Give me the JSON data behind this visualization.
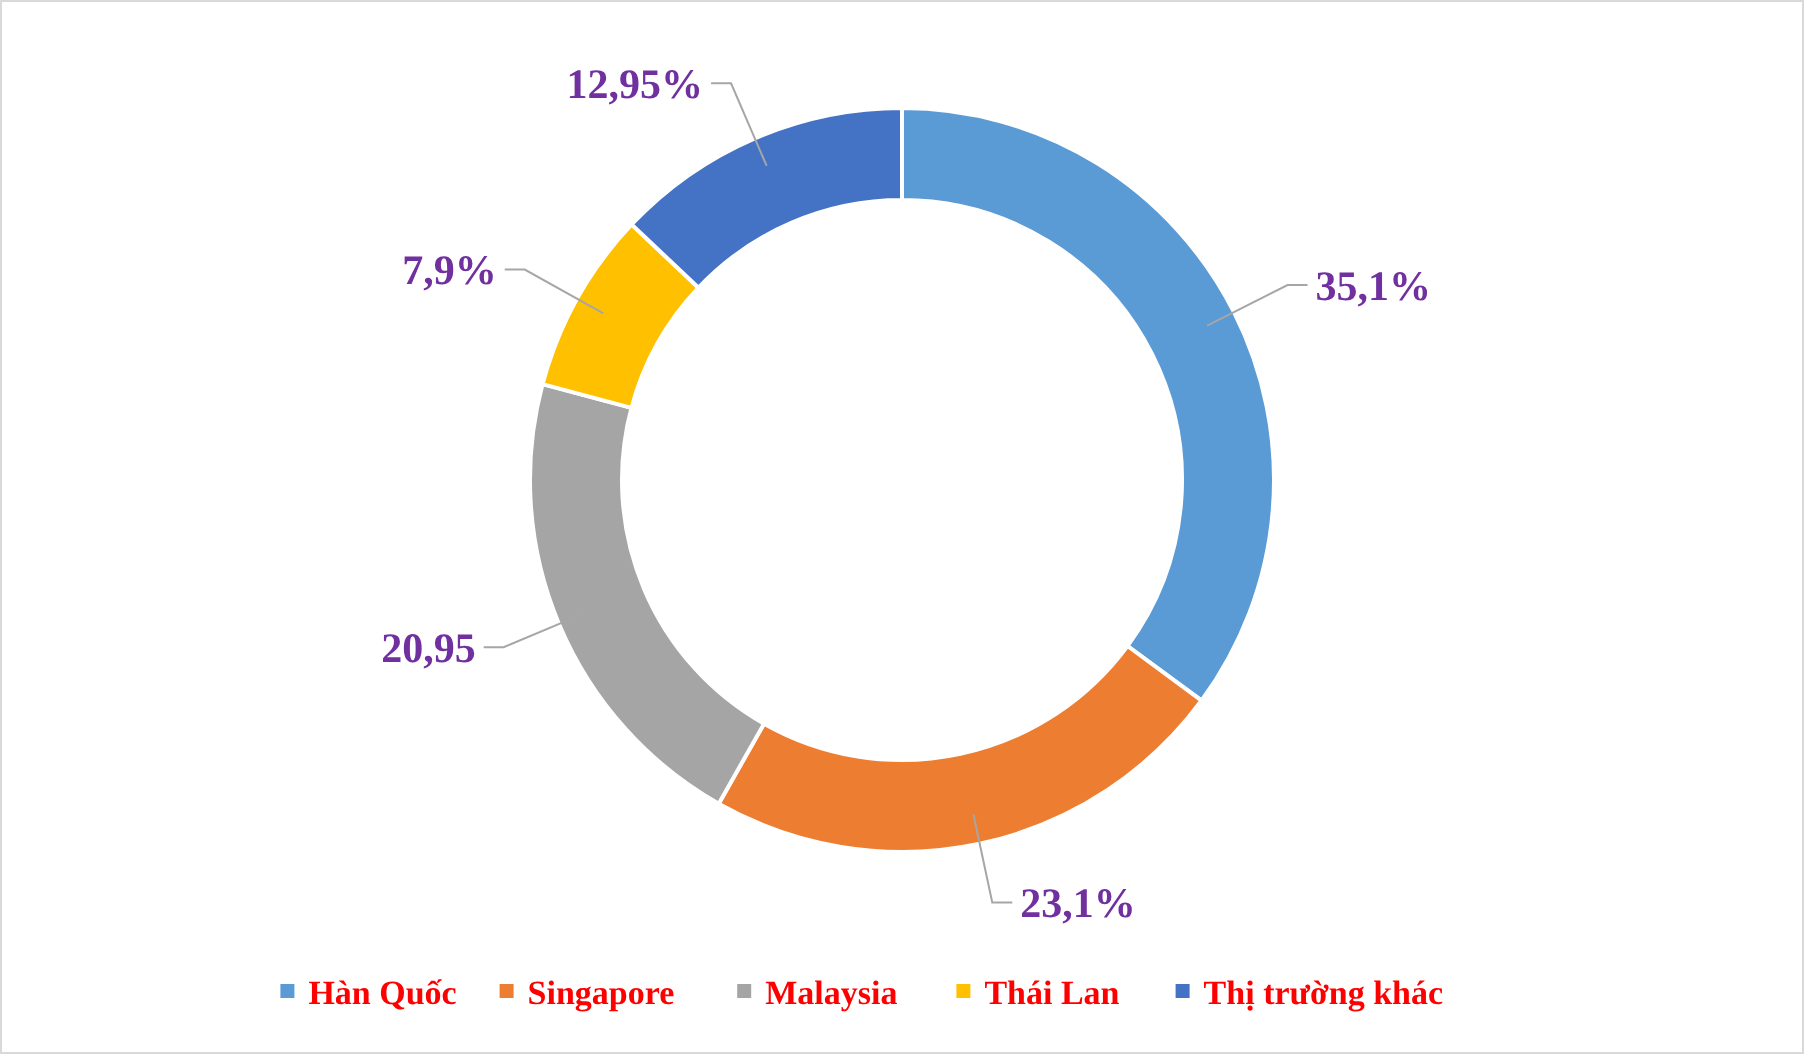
{
  "chart_data": {
    "type": "donut",
    "categories": [
      "Hàn Quốc",
      "Singapore",
      "Malaysia",
      "Thái Lan",
      "Thị trường khác"
    ],
    "values": [
      35.1,
      23.1,
      20.95,
      7.9,
      12.95
    ],
    "value_labels": [
      "35,1%",
      "23,1%",
      "20,95",
      "7,9%",
      "12,95%"
    ],
    "colors": [
      "#5b9bd5",
      "#ed7d31",
      "#a5a5a5",
      "#ffc000",
      "#4472c4"
    ],
    "legend": "bottom"
  }
}
